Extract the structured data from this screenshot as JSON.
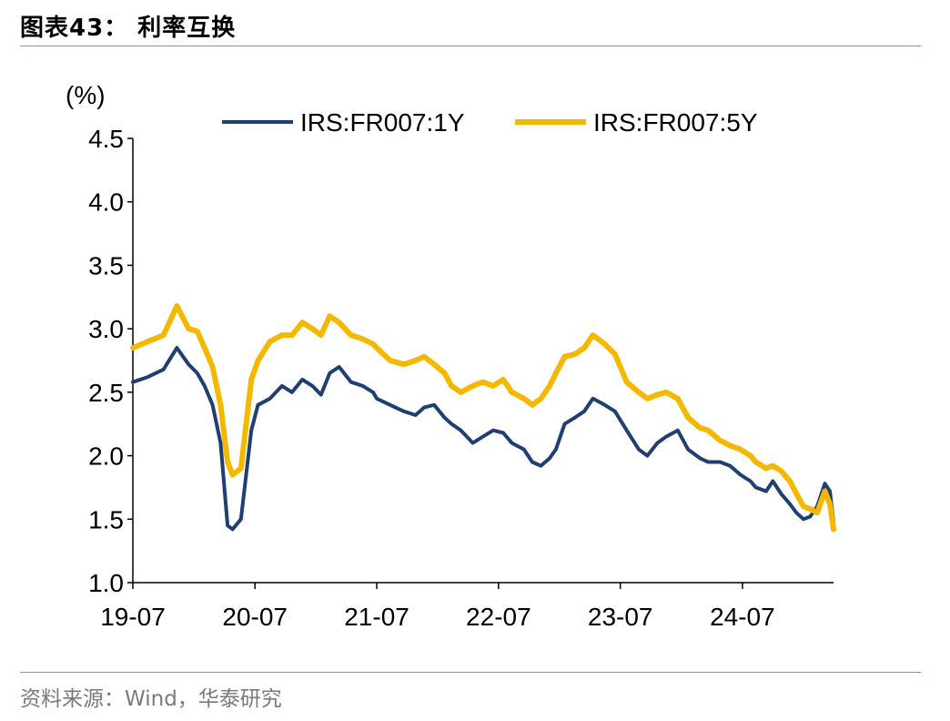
{
  "header": {
    "title": "图表43：  利率互换"
  },
  "footer": {
    "source": "资料来源：Wind，华泰研究"
  },
  "colors": {
    "series_1y": "#1f3f73",
    "series_5y": "#f5b800",
    "rule": "#7f93b4",
    "axis": "#000000"
  },
  "chart_data": {
    "type": "line",
    "title": "",
    "ylabel": "(%)",
    "xlabel": "",
    "ylim": [
      1.0,
      4.5
    ],
    "yticks": [
      4.5,
      4.0,
      3.5,
      3.0,
      2.5,
      2.0,
      1.5,
      1.0
    ],
    "ytick_labels": [
      "4.5",
      "4.0",
      "3.5",
      "3.0",
      "2.5",
      "2.0",
      "1.5",
      "1.0"
    ],
    "xlim": [
      "2019-07-01",
      "2025-03-31"
    ],
    "xticks": [
      "2019-07-01",
      "2020-07-01",
      "2021-07-01",
      "2022-07-01",
      "2023-07-01",
      "2024-07-01"
    ],
    "xtick_labels": [
      "19-07",
      "20-07",
      "21-07",
      "22-07",
      "23-07",
      "24-07"
    ],
    "grid": false,
    "legend": {
      "position": "top-center"
    },
    "series": [
      {
        "name": "IRS:FR007:1Y",
        "x": [
          "2019-07-01",
          "2019-08-15",
          "2019-10-01",
          "2019-11-10",
          "2019-12-15",
          "2020-01-10",
          "2020-02-01",
          "2020-02-25",
          "2020-03-20",
          "2020-04-10",
          "2020-04-25",
          "2020-05-20",
          "2020-06-20",
          "2020-07-10",
          "2020-08-15",
          "2020-09-20",
          "2020-10-20",
          "2020-11-20",
          "2020-12-20",
          "2021-01-15",
          "2021-02-10",
          "2021-03-10",
          "2021-04-15",
          "2021-05-20",
          "2021-06-20",
          "2021-07-01",
          "2021-08-10",
          "2021-09-20",
          "2021-10-25",
          "2021-11-20",
          "2021-12-20",
          "2022-01-20",
          "2022-02-10",
          "2022-03-10",
          "2022-04-15",
          "2022-05-15",
          "2022-06-15",
          "2022-07-15",
          "2022-08-10",
          "2022-09-15",
          "2022-10-10",
          "2022-11-05",
          "2022-12-01",
          "2022-12-20",
          "2023-01-15",
          "2023-02-15",
          "2023-03-15",
          "2023-04-10",
          "2023-05-15",
          "2023-06-15",
          "2023-07-20",
          "2023-08-25",
          "2023-09-20",
          "2023-10-20",
          "2023-11-15",
          "2023-12-20",
          "2024-01-20",
          "2024-02-25",
          "2024-03-20",
          "2024-04-25",
          "2024-05-25",
          "2024-06-25",
          "2024-07-25",
          "2024-08-10",
          "2024-09-10",
          "2024-09-30",
          "2024-10-25",
          "2024-11-20",
          "2024-12-10",
          "2024-12-31",
          "2025-01-20",
          "2025-02-10",
          "2025-03-05",
          "2025-03-20",
          "2025-03-31"
        ],
        "values": [
          2.58,
          2.62,
          2.68,
          2.85,
          2.72,
          2.65,
          2.55,
          2.4,
          2.1,
          1.45,
          1.42,
          1.5,
          2.2,
          2.4,
          2.45,
          2.55,
          2.5,
          2.6,
          2.55,
          2.48,
          2.65,
          2.7,
          2.58,
          2.55,
          2.5,
          2.45,
          2.4,
          2.35,
          2.32,
          2.38,
          2.4,
          2.3,
          2.25,
          2.2,
          2.1,
          2.15,
          2.2,
          2.18,
          2.1,
          2.05,
          1.95,
          1.92,
          1.98,
          2.05,
          2.25,
          2.3,
          2.35,
          2.45,
          2.4,
          2.35,
          2.2,
          2.05,
          2.0,
          2.1,
          2.15,
          2.2,
          2.05,
          1.98,
          1.95,
          1.95,
          1.92,
          1.85,
          1.8,
          1.75,
          1.72,
          1.8,
          1.7,
          1.62,
          1.55,
          1.5,
          1.52,
          1.6,
          1.78,
          1.72,
          1.48
        ]
      },
      {
        "name": "IRS:FR007:5Y",
        "x": [
          "2019-07-01",
          "2019-08-15",
          "2019-10-01",
          "2019-11-10",
          "2019-12-15",
          "2020-01-10",
          "2020-02-01",
          "2020-02-25",
          "2020-03-20",
          "2020-04-10",
          "2020-04-25",
          "2020-05-20",
          "2020-06-20",
          "2020-07-10",
          "2020-08-15",
          "2020-09-20",
          "2020-10-20",
          "2020-11-20",
          "2020-12-20",
          "2021-01-15",
          "2021-02-10",
          "2021-03-10",
          "2021-04-15",
          "2021-05-20",
          "2021-06-20",
          "2021-07-01",
          "2021-08-10",
          "2021-09-20",
          "2021-10-25",
          "2021-11-20",
          "2021-12-20",
          "2022-01-20",
          "2022-02-10",
          "2022-03-10",
          "2022-04-15",
          "2022-05-15",
          "2022-06-15",
          "2022-07-15",
          "2022-08-10",
          "2022-09-15",
          "2022-10-10",
          "2022-11-05",
          "2022-12-01",
          "2022-12-20",
          "2023-01-15",
          "2023-02-15",
          "2023-03-15",
          "2023-04-10",
          "2023-05-15",
          "2023-06-15",
          "2023-07-20",
          "2023-08-25",
          "2023-09-20",
          "2023-10-20",
          "2023-11-15",
          "2023-12-20",
          "2024-01-20",
          "2024-02-25",
          "2024-03-20",
          "2024-04-25",
          "2024-05-25",
          "2024-06-25",
          "2024-07-25",
          "2024-08-10",
          "2024-09-10",
          "2024-09-30",
          "2024-10-25",
          "2024-11-20",
          "2024-12-10",
          "2024-12-31",
          "2025-01-20",
          "2025-02-10",
          "2025-03-05",
          "2025-03-20",
          "2025-03-31"
        ],
        "values": [
          2.85,
          2.9,
          2.95,
          3.18,
          3.0,
          2.98,
          2.85,
          2.7,
          2.4,
          1.95,
          1.85,
          1.9,
          2.6,
          2.75,
          2.9,
          2.95,
          2.95,
          3.05,
          3.0,
          2.95,
          3.1,
          3.05,
          2.95,
          2.92,
          2.88,
          2.85,
          2.75,
          2.72,
          2.75,
          2.78,
          2.72,
          2.65,
          2.55,
          2.5,
          2.55,
          2.58,
          2.55,
          2.6,
          2.5,
          2.45,
          2.4,
          2.45,
          2.55,
          2.65,
          2.78,
          2.8,
          2.85,
          2.95,
          2.88,
          2.8,
          2.58,
          2.5,
          2.45,
          2.48,
          2.5,
          2.45,
          2.3,
          2.22,
          2.2,
          2.12,
          2.08,
          2.05,
          2.0,
          1.95,
          1.9,
          1.92,
          1.88,
          1.8,
          1.7,
          1.6,
          1.58,
          1.55,
          1.72,
          1.62,
          1.42
        ]
      }
    ]
  }
}
